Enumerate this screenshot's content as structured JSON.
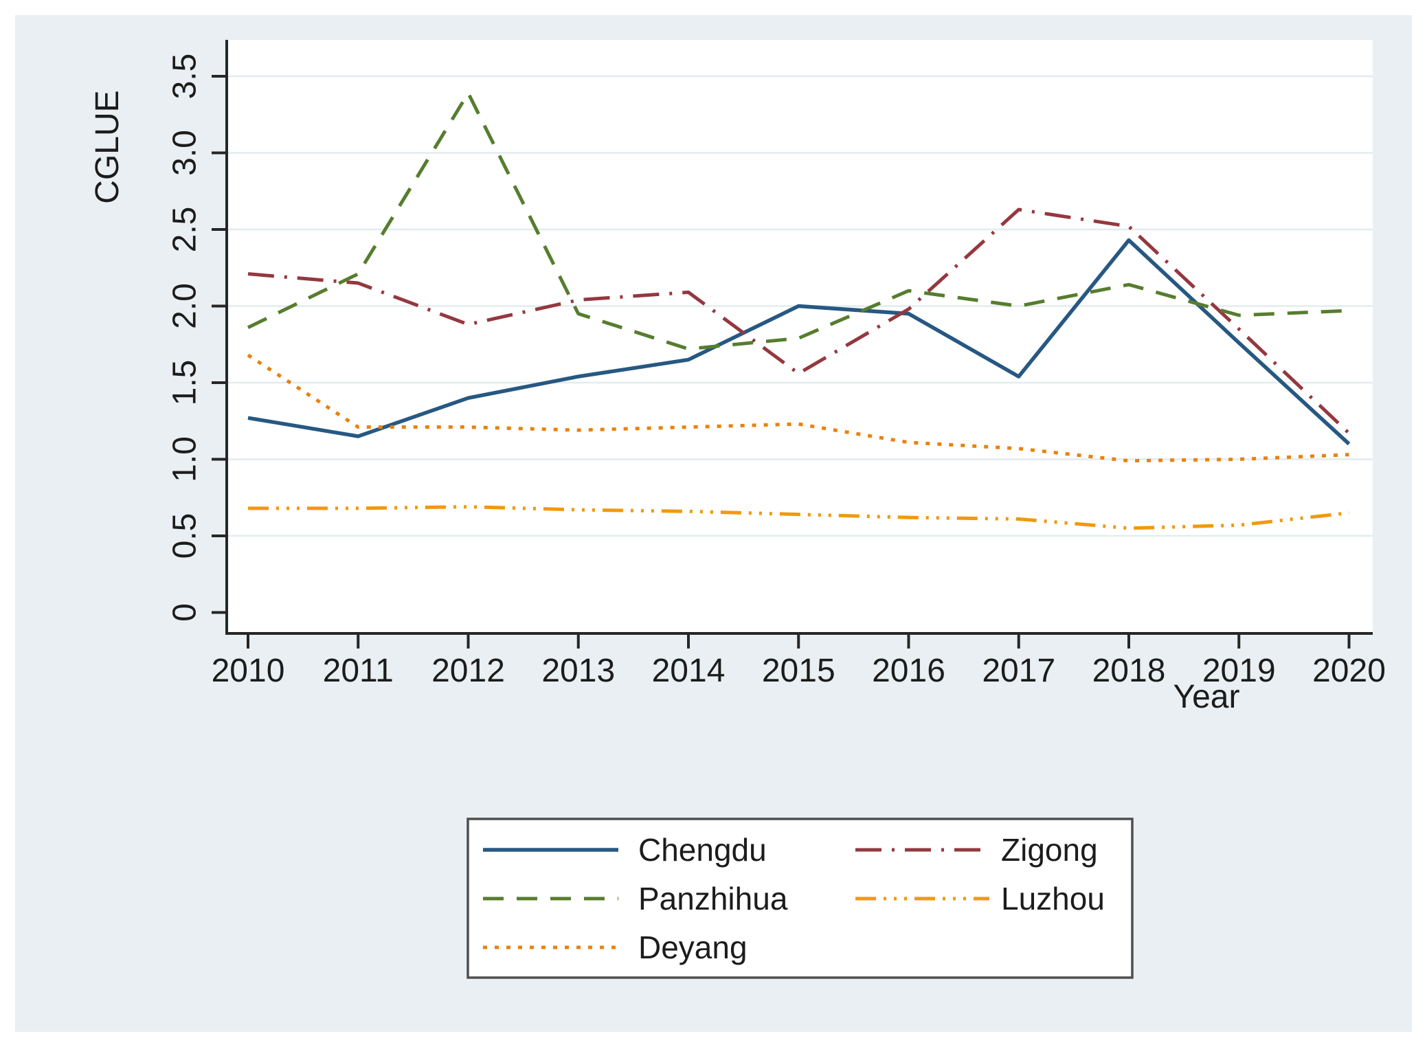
{
  "chart_data": {
    "type": "line",
    "title": "",
    "xlabel": "Year",
    "ylabel": "CGLUE",
    "x": [
      2010,
      2011,
      2012,
      2013,
      2014,
      2015,
      2016,
      2017,
      2018,
      2019,
      2020
    ],
    "x_tick_labels": [
      "2010",
      "2011",
      "2012",
      "2013",
      "2014",
      "2015",
      "2016",
      "2017",
      "2018",
      "2019",
      "2020"
    ],
    "ylim": [
      0,
      3.5
    ],
    "y_ticks": [
      0,
      0.5,
      1.0,
      1.5,
      2.0,
      2.5,
      3.0,
      3.5
    ],
    "y_tick_labels": [
      "0",
      "0.5",
      "1.0",
      "1.5",
      "2.0",
      "2.5",
      "3.0",
      "3.5"
    ],
    "grid": "horizontal",
    "legend_position": "bottom-center-framed",
    "series": [
      {
        "name": "Chengdu",
        "color": "#265882",
        "dash": "solid",
        "values": [
          1.27,
          1.15,
          1.4,
          1.54,
          1.65,
          2.0,
          1.95,
          1.54,
          2.43,
          1.76,
          1.1
        ]
      },
      {
        "name": "Zigong",
        "color": "#94383f",
        "dash": "dash-dot",
        "values": [
          2.21,
          2.15,
          1.88,
          2.04,
          2.09,
          1.56,
          1.98,
          2.63,
          2.52,
          1.85,
          1.17
        ]
      },
      {
        "name": "Panzhihua",
        "color": "#567d2e",
        "dash": "dash",
        "values": [
          1.86,
          2.21,
          3.39,
          1.95,
          1.72,
          1.79,
          2.1,
          2.0,
          2.14,
          1.94,
          1.97
        ]
      },
      {
        "name": "Luzhou",
        "color": "#f0990f",
        "dash": "dash-dot-dot",
        "values": [
          0.68,
          0.68,
          0.69,
          0.67,
          0.66,
          0.64,
          0.62,
          0.61,
          0.55,
          0.57,
          0.65
        ]
      },
      {
        "name": "Deyang",
        "color": "#e8820c",
        "dash": "dot",
        "values": [
          1.68,
          1.21,
          1.21,
          1.19,
          1.21,
          1.23,
          1.11,
          1.07,
          0.99,
          1.0,
          1.03
        ]
      }
    ],
    "legend_order": [
      "Chengdu",
      "Zigong",
      "Panzhihua",
      "Luzhou",
      "Deyang"
    ],
    "legend_columns": 2
  },
  "colors": {
    "canvas_background": "#e9eff2",
    "plot_background": "#ffffff",
    "gridline": "#e2ecee",
    "axis": "#262626",
    "text": "#1c1c1c",
    "legend_border": "#4f4f4f",
    "legend_background": "#ffffff"
  }
}
